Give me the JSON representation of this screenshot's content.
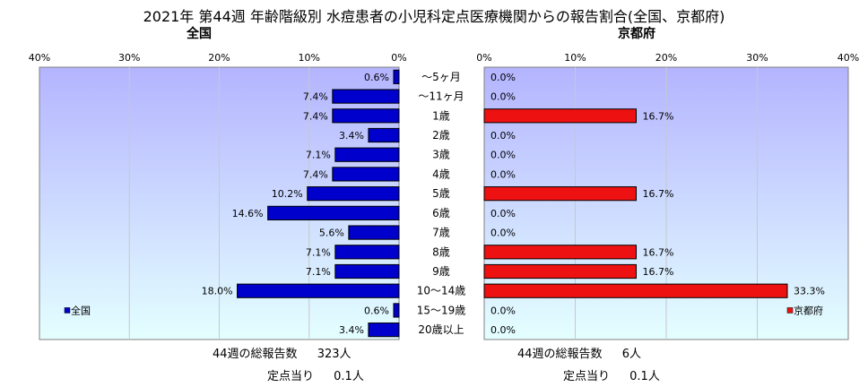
{
  "title": "2021年 第44週 年齢階級別 水痘患者の小児科定点医療機関からの報告割合(全国、京都府)",
  "chart_data": {
    "type": "bar",
    "orientation": "horizontal",
    "categories": [
      "〜5ヶ月",
      "〜11ヶ月",
      "1歳",
      "2歳",
      "3歳",
      "4歳",
      "5歳",
      "6歳",
      "7歳",
      "8歳",
      "9歳",
      "10〜14歳",
      "15〜19歳",
      "20歳以上"
    ],
    "unit": "%",
    "xlim": [
      0,
      40
    ],
    "ticks": [
      0,
      10,
      20,
      30,
      40
    ],
    "tick_labels": [
      "0%",
      "10%",
      "20%",
      "30%",
      "40%"
    ],
    "series": [
      {
        "name": "全国",
        "panel_title": "全国",
        "direction": "left",
        "color": "#0000cc",
        "values": [
          0.6,
          7.4,
          7.4,
          3.4,
          7.1,
          7.4,
          10.2,
          14.6,
          5.6,
          7.1,
          7.1,
          18.0,
          0.6,
          3.4
        ],
        "labels": [
          "0.6%",
          "7.4%",
          "7.4%",
          "3.4%",
          "7.1%",
          "7.4%",
          "10.2%",
          "14.6%",
          "5.6%",
          "7.1%",
          "7.1%",
          "18.0%",
          "0.6%",
          "3.4%"
        ],
        "legend": "全国",
        "legend_position": "left"
      },
      {
        "name": "京都府",
        "panel_title": "京都府",
        "direction": "right",
        "color": "#ee1111",
        "values": [
          0.0,
          0.0,
          16.7,
          0.0,
          0.0,
          0.0,
          16.7,
          0.0,
          0.0,
          16.7,
          16.7,
          33.3,
          0.0,
          0.0
        ],
        "labels": [
          "0.0%",
          "0.0%",
          "16.7%",
          "0.0%",
          "0.0%",
          "0.0%",
          "16.7%",
          "0.0%",
          "0.0%",
          "16.7%",
          "16.7%",
          "33.3%",
          "0.0%",
          "0.0%"
        ],
        "legend": "京都府",
        "legend_position": "right"
      }
    ],
    "plot_background": [
      "#b4b4ff",
      "#e4ffff"
    ],
    "grid": true
  },
  "footer": {
    "national": {
      "reports_label": "44週の総報告数",
      "reports_value": "323人",
      "per_site_label": "定点当り",
      "per_site_value": "0.1人"
    },
    "kyoto": {
      "reports_label": "44週の総報告数",
      "reports_value": "6人",
      "per_site_label": "定点当り",
      "per_site_value": "0.1人"
    }
  }
}
